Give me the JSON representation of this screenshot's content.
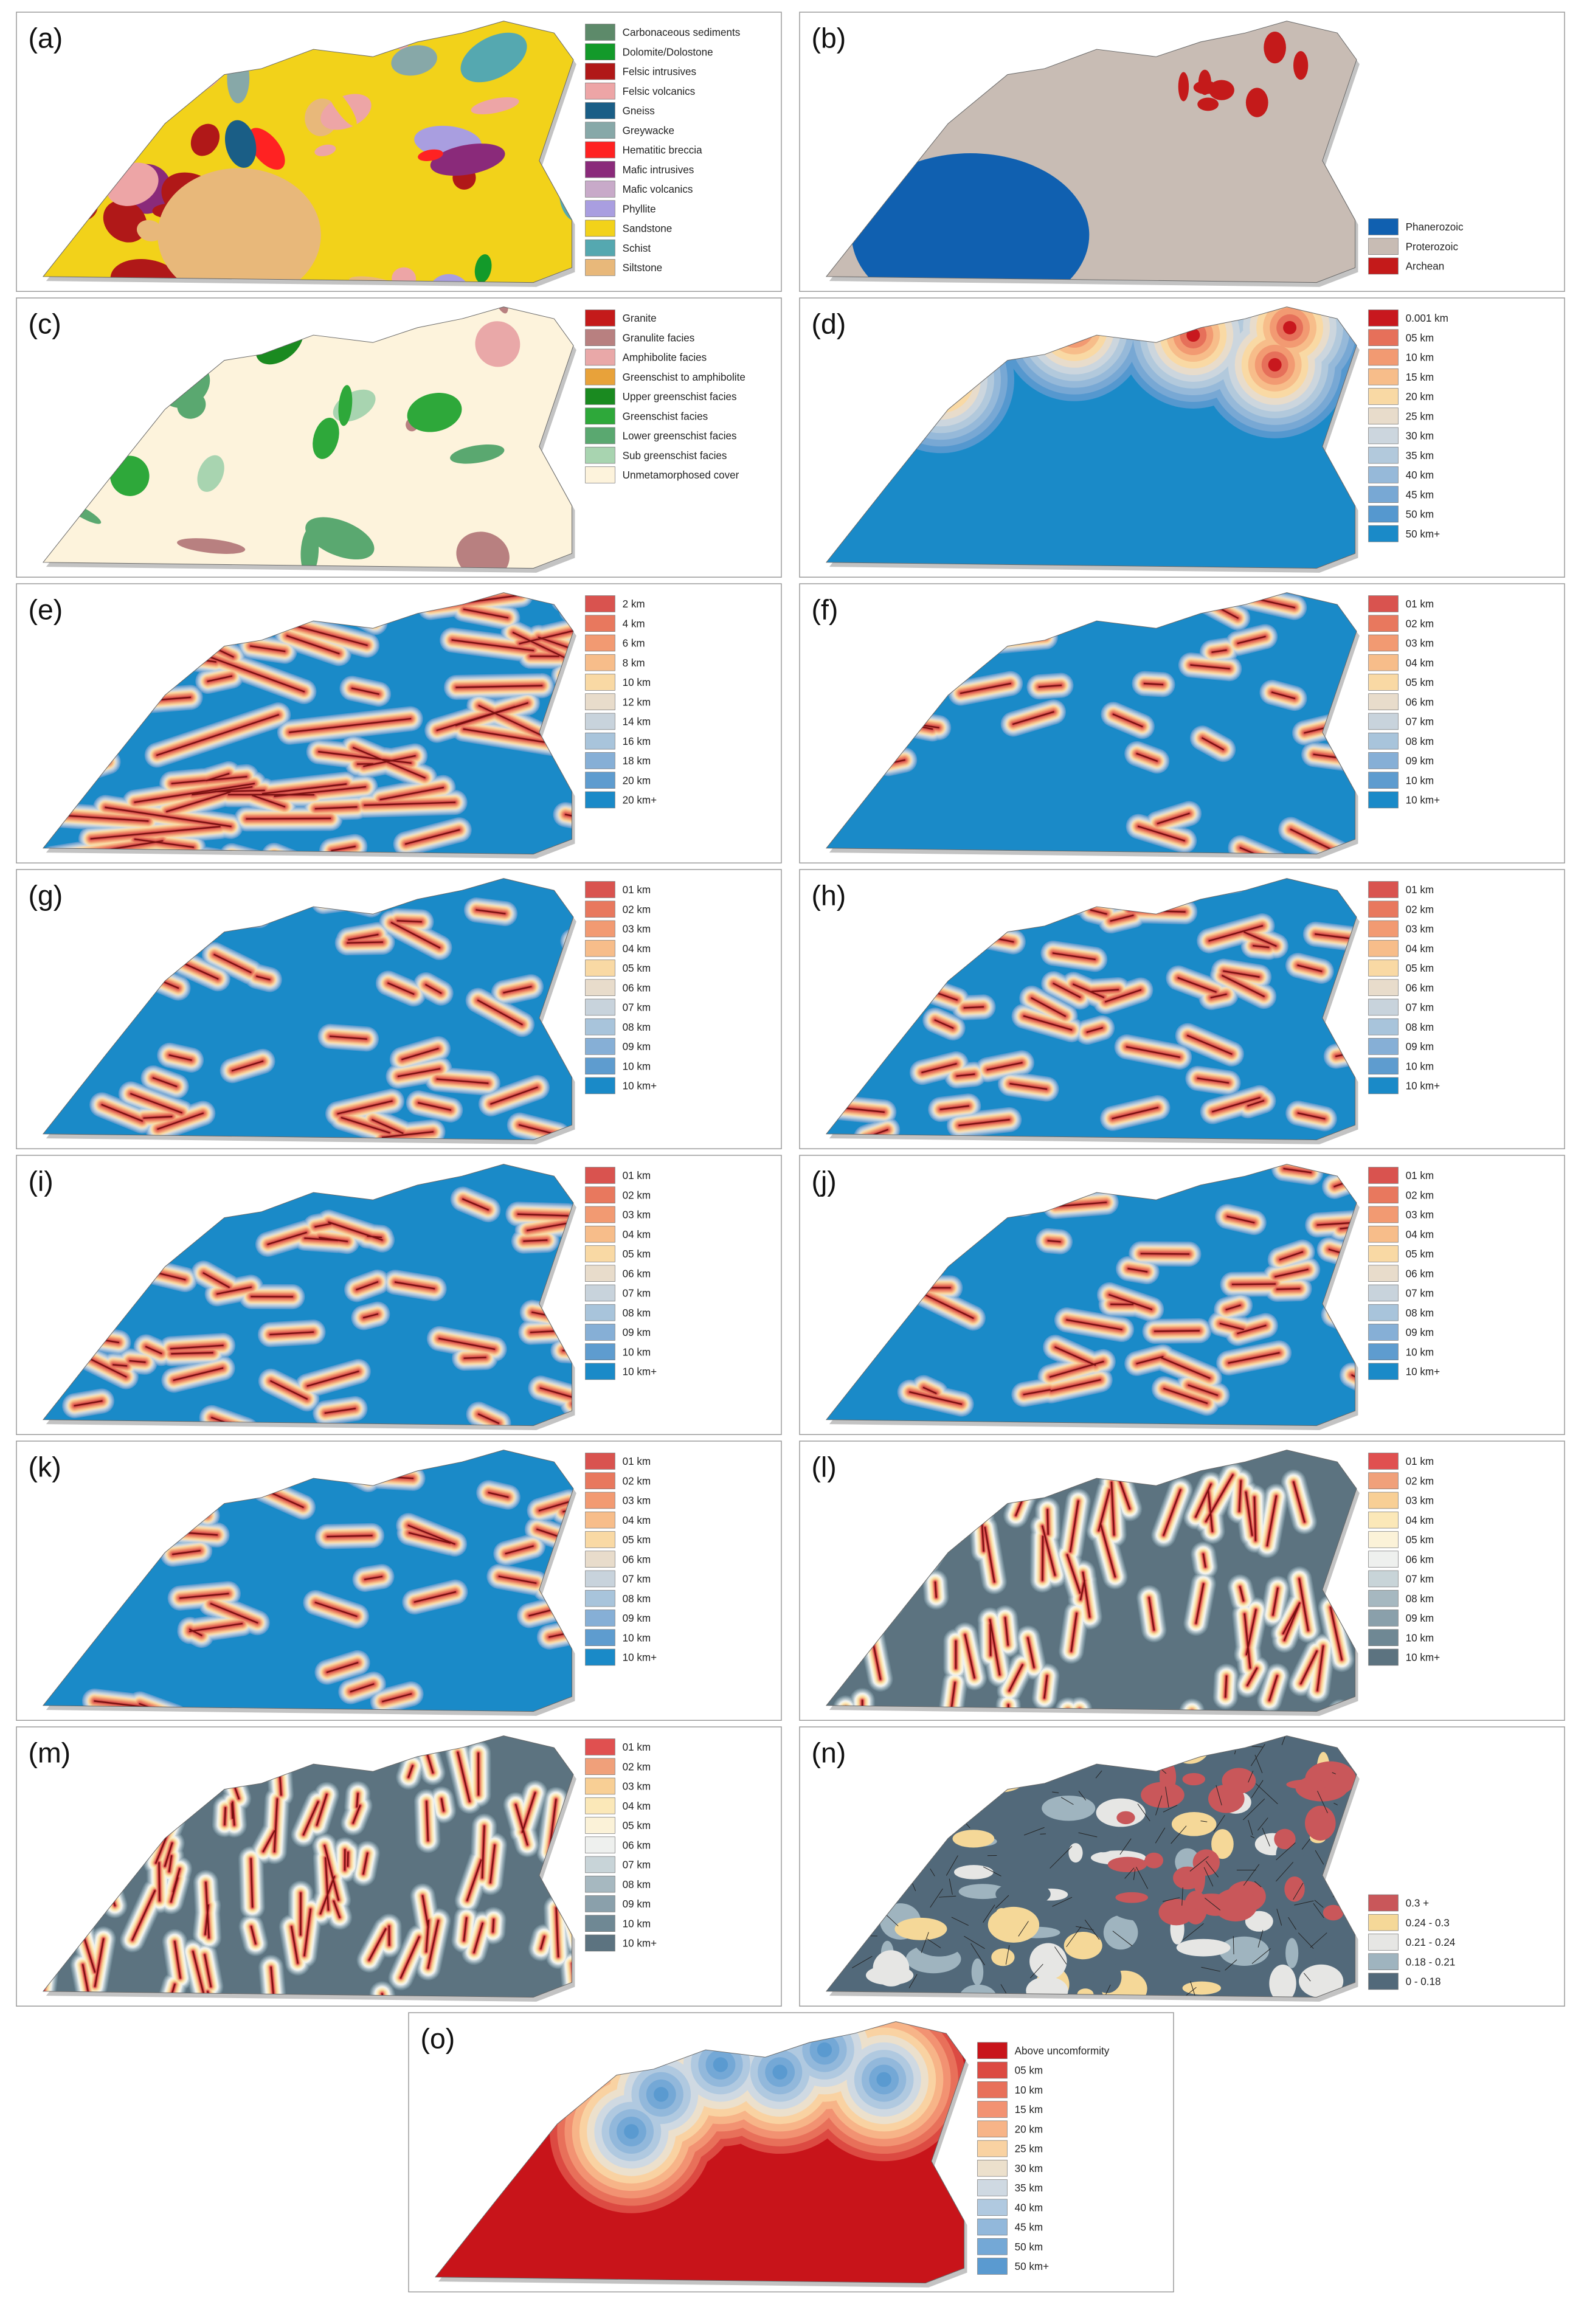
{
  "panels": [
    {
      "label": "(a)",
      "legend": [
        {
          "label": "Carbonaceous sediments",
          "color": "#5d8a6a"
        },
        {
          "label": "Dolomite/Dolostone",
          "color": "#139a2a"
        },
        {
          "label": "Felsic intrusives",
          "color": "#b01818"
        },
        {
          "label": "Felsic volcanics",
          "color": "#eda5a6"
        },
        {
          "label": "Gneiss",
          "color": "#1a5e86"
        },
        {
          "label": "Greywacke",
          "color": "#87a8a8"
        },
        {
          "label": "Hematitic breccia",
          "color": "#ff2222"
        },
        {
          "label": "Mafic intrusives",
          "color": "#8a2a7a"
        },
        {
          "label": "Mafic volcanics",
          "color": "#c8aac9"
        },
        {
          "label": "Phyllite",
          "color": "#a99ee0"
        },
        {
          "label": "Sandstone",
          "color": "#f2d21a"
        },
        {
          "label": "Schist",
          "color": "#55a8b0"
        },
        {
          "label": "Siltstone",
          "color": "#e8b87a"
        }
      ]
    },
    {
      "label": "(b)",
      "legend": [
        {
          "label": "Phanerozoic",
          "color": "#1060b0"
        },
        {
          "label": "Proterozoic",
          "color": "#c8bcb4"
        },
        {
          "label": "Archean",
          "color": "#c41a1a"
        }
      ]
    },
    {
      "label": "(c)",
      "legend": [
        {
          "label": "Granite",
          "color": "#c41a1a"
        },
        {
          "label": "Granulite facies",
          "color": "#b88080"
        },
        {
          "label": "Amphibolite facies",
          "color": "#e9a8a8"
        },
        {
          "label": "Greenschist to amphibolite",
          "color": "#e8a23a"
        },
        {
          "label": "Upper greenschist facies",
          "color": "#1a8a20"
        },
        {
          "label": "Greenschist facies",
          "color": "#2ea83a"
        },
        {
          "label": "Lower greenschist facies",
          "color": "#5aa870"
        },
        {
          "label": "Sub greenschist facies",
          "color": "#a8d4b0"
        },
        {
          "label": "Unmetamorphosed cover",
          "color": "#fdf3dc"
        }
      ]
    },
    {
      "label": "(d)",
      "legend": [
        {
          "label": "0.001 km",
          "color": "#c8181e"
        },
        {
          "label": "05 km",
          "color": "#e6705a"
        },
        {
          "label": "10 km",
          "color": "#f29a72"
        },
        {
          "label": "15 km",
          "color": "#f7bd8a"
        },
        {
          "label": "20 km",
          "color": "#f9d9a4"
        },
        {
          "label": "25 km",
          "color": "#e8dccb"
        },
        {
          "label": "30 km",
          "color": "#ccd6de"
        },
        {
          "label": "35 km",
          "color": "#b2c9dc"
        },
        {
          "label": "40 km",
          "color": "#96b9d9"
        },
        {
          "label": "45 km",
          "color": "#78a8d4"
        },
        {
          "label": "50 km",
          "color": "#5598cf"
        },
        {
          "label": "50 km+",
          "color": "#1a8ac8"
        }
      ]
    },
    {
      "label": "(e)",
      "legend": [
        {
          "label": "2 km",
          "color": "#d9534f"
        },
        {
          "label": "4 km",
          "color": "#e8785e"
        },
        {
          "label": "6 km",
          "color": "#f29a72"
        },
        {
          "label": "8 km",
          "color": "#f7bd8a"
        },
        {
          "label": "10 km",
          "color": "#f9d9a4"
        },
        {
          "label": "12 km",
          "color": "#e8dccb"
        },
        {
          "label": "14 km",
          "color": "#c8d3dc"
        },
        {
          "label": "16 km",
          "color": "#a8c4db"
        },
        {
          "label": "18 km",
          "color": "#86afd6"
        },
        {
          "label": "20 km",
          "color": "#5e9ccf"
        },
        {
          "label": "20 km+",
          "color": "#1a8ac8"
        }
      ]
    },
    {
      "label": "(f)",
      "legend": [
        {
          "label": "01 km",
          "color": "#d9534f"
        },
        {
          "label": "02 km",
          "color": "#e8785e"
        },
        {
          "label": "03 km",
          "color": "#f29a72"
        },
        {
          "label": "04 km",
          "color": "#f7bd8a"
        },
        {
          "label": "05 km",
          "color": "#f9d9a4"
        },
        {
          "label": "06 km",
          "color": "#e8dccb"
        },
        {
          "label": "07 km",
          "color": "#c8d3dc"
        },
        {
          "label": "08 km",
          "color": "#a8c4db"
        },
        {
          "label": "09 km",
          "color": "#86afd6"
        },
        {
          "label": "10 km",
          "color": "#5e9ccf"
        },
        {
          "label": "10 km+",
          "color": "#1a8ac8"
        }
      ]
    },
    {
      "label": "(g)",
      "legend": [
        {
          "label": "01 km",
          "color": "#d9534f"
        },
        {
          "label": "02 km",
          "color": "#e8785e"
        },
        {
          "label": "03 km",
          "color": "#f29a72"
        },
        {
          "label": "04 km",
          "color": "#f7bd8a"
        },
        {
          "label": "05 km",
          "color": "#f9d9a4"
        },
        {
          "label": "06 km",
          "color": "#e8dccb"
        },
        {
          "label": "07 km",
          "color": "#c8d3dc"
        },
        {
          "label": "08 km",
          "color": "#a8c4db"
        },
        {
          "label": "09 km",
          "color": "#86afd6"
        },
        {
          "label": "10 km",
          "color": "#5e9ccf"
        },
        {
          "label": "10 km+",
          "color": "#1a8ac8"
        }
      ]
    },
    {
      "label": "(h)",
      "legend": [
        {
          "label": "01 km",
          "color": "#d9534f"
        },
        {
          "label": "02 km",
          "color": "#e8785e"
        },
        {
          "label": "03 km",
          "color": "#f29a72"
        },
        {
          "label": "04 km",
          "color": "#f7bd8a"
        },
        {
          "label": "05 km",
          "color": "#f9d9a4"
        },
        {
          "label": "06 km",
          "color": "#e8dccb"
        },
        {
          "label": "07 km",
          "color": "#c8d3dc"
        },
        {
          "label": "08 km",
          "color": "#a8c4db"
        },
        {
          "label": "09 km",
          "color": "#86afd6"
        },
        {
          "label": "10 km",
          "color": "#5e9ccf"
        },
        {
          "label": "10 km+",
          "color": "#1a8ac8"
        }
      ]
    },
    {
      "label": "(i)",
      "legend": [
        {
          "label": "01 km",
          "color": "#d9534f"
        },
        {
          "label": "02 km",
          "color": "#e8785e"
        },
        {
          "label": "03 km",
          "color": "#f29a72"
        },
        {
          "label": "04 km",
          "color": "#f7bd8a"
        },
        {
          "label": "05 km",
          "color": "#f9d9a4"
        },
        {
          "label": "06 km",
          "color": "#e8dccb"
        },
        {
          "label": "07 km",
          "color": "#c8d3dc"
        },
        {
          "label": "08 km",
          "color": "#a8c4db"
        },
        {
          "label": "09 km",
          "color": "#86afd6"
        },
        {
          "label": "10 km",
          "color": "#5e9ccf"
        },
        {
          "label": "10 km+",
          "color": "#1a8ac8"
        }
      ]
    },
    {
      "label": "(j)",
      "legend": [
        {
          "label": "01 km",
          "color": "#d9534f"
        },
        {
          "label": "02 km",
          "color": "#e8785e"
        },
        {
          "label": "03 km",
          "color": "#f29a72"
        },
        {
          "label": "04 km",
          "color": "#f7bd8a"
        },
        {
          "label": "05 km",
          "color": "#f9d9a4"
        },
        {
          "label": "06 km",
          "color": "#e8dccb"
        },
        {
          "label": "07 km",
          "color": "#c8d3dc"
        },
        {
          "label": "08 km",
          "color": "#a8c4db"
        },
        {
          "label": "09 km",
          "color": "#86afd6"
        },
        {
          "label": "10 km",
          "color": "#5e9ccf"
        },
        {
          "label": "10 km+",
          "color": "#1a8ac8"
        }
      ]
    },
    {
      "label": "(k)",
      "legend": [
        {
          "label": "01 km",
          "color": "#d9534f"
        },
        {
          "label": "02 km",
          "color": "#e8785e"
        },
        {
          "label": "03 km",
          "color": "#f29a72"
        },
        {
          "label": "04 km",
          "color": "#f7bd8a"
        },
        {
          "label": "05 km",
          "color": "#f9d9a4"
        },
        {
          "label": "06 km",
          "color": "#e8dccb"
        },
        {
          "label": "07 km",
          "color": "#c8d3dc"
        },
        {
          "label": "08 km",
          "color": "#a8c4db"
        },
        {
          "label": "09 km",
          "color": "#86afd6"
        },
        {
          "label": "10 km",
          "color": "#5e9ccf"
        },
        {
          "label": "10 km+",
          "color": "#1a8ac8"
        }
      ]
    },
    {
      "label": "(l)",
      "legend": [
        {
          "label": "01 km",
          "color": "#e05050"
        },
        {
          "label": "02 km",
          "color": "#f0a07a"
        },
        {
          "label": "03 km",
          "color": "#f8cf95"
        },
        {
          "label": "04 km",
          "color": "#fbe8b8"
        },
        {
          "label": "05 km",
          "color": "#fbf2d8"
        },
        {
          "label": "06 km",
          "color": "#eef0ee"
        },
        {
          "label": "07 km",
          "color": "#c8d4d8"
        },
        {
          "label": "08 km",
          "color": "#a6b8c0"
        },
        {
          "label": "09 km",
          "color": "#8aa0ab"
        },
        {
          "label": "10 km",
          "color": "#6f8894"
        },
        {
          "label": "10 km+",
          "color": "#5c7380"
        }
      ]
    },
    {
      "label": "(m)",
      "legend": [
        {
          "label": "01 km",
          "color": "#e05050"
        },
        {
          "label": "02 km",
          "color": "#f0a07a"
        },
        {
          "label": "03 km",
          "color": "#f8cf95"
        },
        {
          "label": "04 km",
          "color": "#fbe8b8"
        },
        {
          "label": "05 km",
          "color": "#fbf2d8"
        },
        {
          "label": "06 km",
          "color": "#eef0ee"
        },
        {
          "label": "07 km",
          "color": "#c8d4d8"
        },
        {
          "label": "08 km",
          "color": "#a6b8c0"
        },
        {
          "label": "09 km",
          "color": "#8aa0ab"
        },
        {
          "label": "10 km",
          "color": "#6f8894"
        },
        {
          "label": "10 km+",
          "color": "#5c7380"
        }
      ]
    },
    {
      "label": "(n)",
      "legend": [
        {
          "label": "0.3 +",
          "color": "#c9575a"
        },
        {
          "label": "0.24 - 0.3",
          "color": "#f5d898"
        },
        {
          "label": "0.21 - 0.24",
          "color": "#e6e6e4"
        },
        {
          "label": "0.18 - 0.21",
          "color": "#9fb4bf"
        },
        {
          "label": "0 - 0.18",
          "color": "#52697a"
        }
      ]
    },
    {
      "label": "(o)",
      "legend": [
        {
          "label": "Above uncomformity",
          "color": "#c8141a"
        },
        {
          "label": "05 km",
          "color": "#dc4a42"
        },
        {
          "label": "10 km",
          "color": "#e8705a"
        },
        {
          "label": "15 km",
          "color": "#f29272"
        },
        {
          "label": "20 km",
          "color": "#f7b488"
        },
        {
          "label": "25 km",
          "color": "#f9d2a2"
        },
        {
          "label": "30 km",
          "color": "#ece0cc"
        },
        {
          "label": "35 km",
          "color": "#cfd9e2"
        },
        {
          "label": "40 km",
          "color": "#b0c9e0"
        },
        {
          "label": "45 km",
          "color": "#92b8db"
        },
        {
          "label": "50 km",
          "color": "#74a8d6"
        },
        {
          "label": "50 km+",
          "color": "#5a9ad0"
        }
      ]
    }
  ]
}
